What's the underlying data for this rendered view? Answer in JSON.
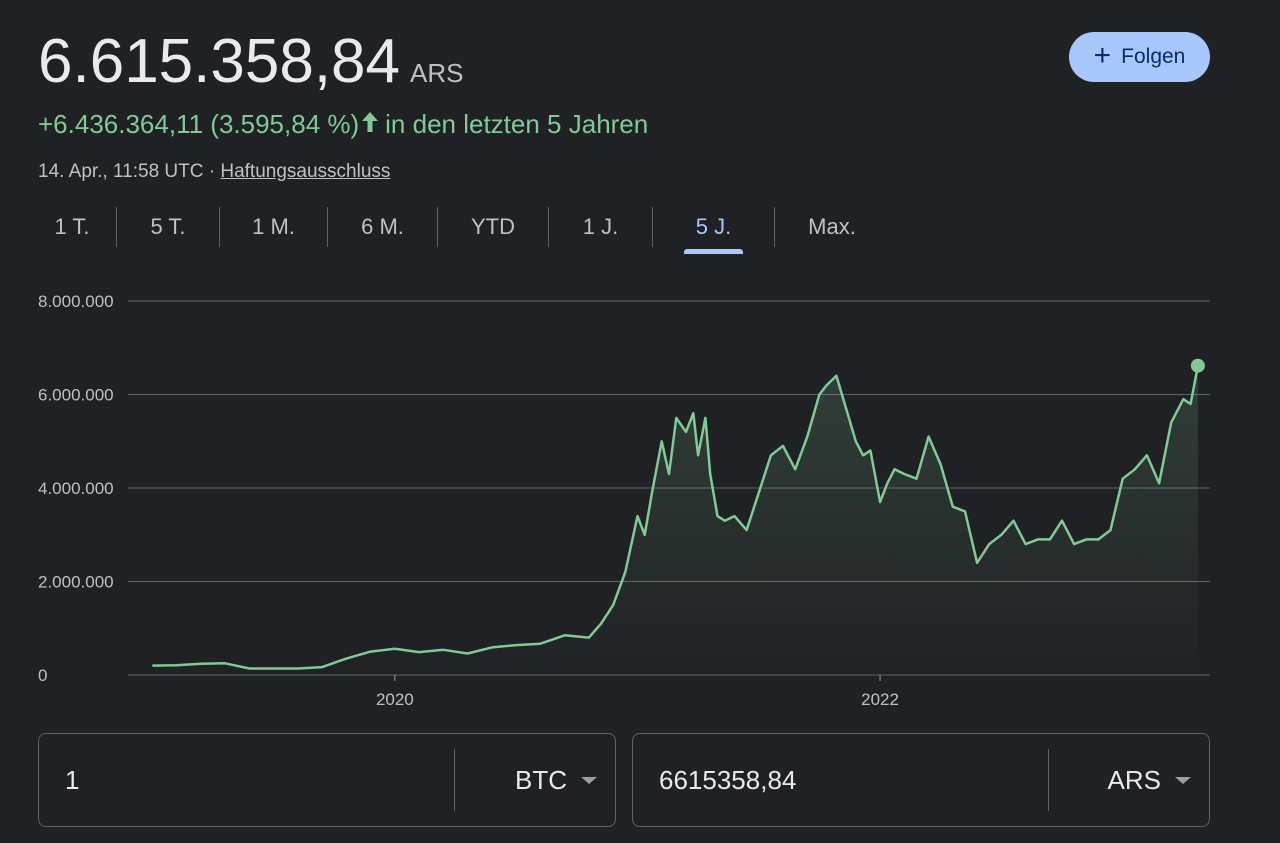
{
  "header": {
    "price": "6.615.358,84",
    "currency": "ARS",
    "follow_label": "Folgen",
    "change_text": "+6.436.364,11 (3.595,84 %)",
    "period_text": "in den letzten 5 Jahren",
    "timestamp": "14. Apr., 11:58 UTC",
    "separator": "·",
    "disclaimer": "Haftungsausschluss"
  },
  "tabs": [
    {
      "label": "1 T."
    },
    {
      "label": "5 T."
    },
    {
      "label": "1 M."
    },
    {
      "label": "6 M."
    },
    {
      "label": "YTD"
    },
    {
      "label": "1 J."
    },
    {
      "label": "5 J.",
      "active": true
    },
    {
      "label": "Max."
    }
  ],
  "colors": {
    "background": "#202124",
    "line": "#81c995",
    "accent": "#a8c7fa",
    "grid": "#5f6368"
  },
  "chart_data": {
    "type": "line",
    "y_tick_labels": [
      "8.000.000",
      "6.000.000",
      "4.000.000",
      "2.000.000",
      "0"
    ],
    "yticks": [
      8000000,
      6000000,
      4000000,
      2000000,
      0
    ],
    "ylim": [
      0,
      8000000
    ],
    "x_tick_labels": [
      "2020",
      "2022"
    ],
    "xticks": [
      2020.0,
      2022.0
    ],
    "xlim": [
      2018.9,
      2023.36
    ],
    "series": [
      {
        "x": [
          2019.0,
          2019.1,
          2019.2,
          2019.3,
          2019.4,
          2019.5,
          2019.6,
          2019.7,
          2019.8,
          2019.9,
          2020.0,
          2020.1,
          2020.2,
          2020.3,
          2020.4,
          2020.5,
          2020.6,
          2020.7,
          2020.8,
          2020.85,
          2020.9,
          2020.95,
          2021.0,
          2021.03,
          2021.06,
          2021.1,
          2021.13,
          2021.16,
          2021.2,
          2021.23,
          2021.25,
          2021.28,
          2021.3,
          2021.33,
          2021.36,
          2021.4,
          2021.45,
          2021.5,
          2021.55,
          2021.6,
          2021.65,
          2021.7,
          2021.75,
          2021.78,
          2021.82,
          2021.86,
          2021.9,
          2021.93,
          2021.96,
          2022.0,
          2022.03,
          2022.06,
          2022.1,
          2022.15,
          2022.2,
          2022.25,
          2022.3,
          2022.35,
          2022.4,
          2022.45,
          2022.5,
          2022.55,
          2022.6,
          2022.65,
          2022.7,
          2022.75,
          2022.8,
          2022.85,
          2022.9,
          2022.95,
          2023.0,
          2023.05,
          2023.1,
          2023.15,
          2023.2,
          2023.25,
          2023.28,
          2023.31
        ],
        "y": [
          200000,
          210000,
          240000,
          250000,
          140000,
          140000,
          140000,
          170000,
          350000,
          500000,
          560000,
          490000,
          540000,
          460000,
          590000,
          640000,
          670000,
          850000,
          800000,
          1100000,
          1500000,
          2200000,
          3400000,
          3000000,
          3900000,
          5000000,
          4300000,
          5500000,
          5200000,
          5600000,
          4700000,
          5500000,
          4300000,
          3400000,
          3300000,
          3400000,
          3100000,
          3900000,
          4700000,
          4900000,
          4400000,
          5100000,
          6000000,
          6200000,
          6400000,
          5700000,
          5000000,
          4700000,
          4800000,
          3700000,
          4100000,
          4400000,
          4300000,
          4200000,
          5100000,
          4500000,
          3600000,
          3500000,
          2400000,
          2800000,
          3000000,
          3300000,
          2800000,
          2900000,
          2900000,
          3300000,
          2800000,
          2900000,
          2900000,
          3100000,
          4200000,
          4400000,
          4700000,
          4100000,
          5400000,
          5900000,
          5800000,
          6615358
        ]
      }
    ]
  },
  "converter": {
    "left_value": "1",
    "left_unit": "BTC",
    "right_value": "6615358,84",
    "right_unit": "ARS"
  }
}
